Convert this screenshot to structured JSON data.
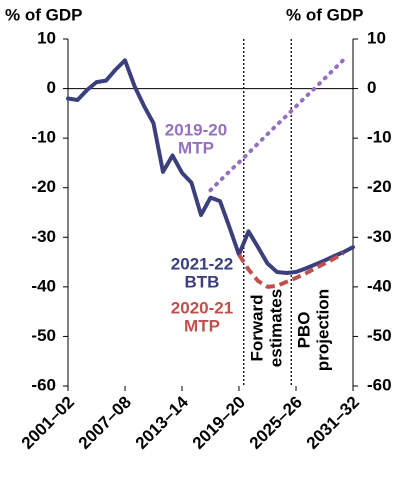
{
  "chart_data": {
    "type": "line",
    "y_label_left": "% of GDP",
    "y_label_right": "% of GDP",
    "x": [
      2001,
      2002,
      2003,
      2004,
      2005,
      2006,
      2007,
      2008,
      2009,
      2010,
      2011,
      2012,
      2013,
      2014,
      2015,
      2016,
      2017,
      2018,
      2019,
      2020,
      2021,
      2022,
      2023,
      2024,
      2025,
      2026,
      2027,
      2028,
      2029,
      2030,
      2031
    ],
    "xlim": [
      2001,
      2031
    ],
    "xticks": [
      {
        "value": 2001,
        "label": "2001–02"
      },
      {
        "value": 2007,
        "label": "2007–08"
      },
      {
        "value": 2013,
        "label": "2013–14"
      },
      {
        "value": 2019,
        "label": "2019–20"
      },
      {
        "value": 2025,
        "label": "2025–26"
      },
      {
        "value": 2031,
        "label": "2031–32"
      }
    ],
    "ylim": [
      -60,
      10
    ],
    "yticks": [
      10,
      0,
      -10,
      -20,
      -30,
      -40,
      -50,
      -60
    ],
    "vlines": [
      2019.5,
      2024.5
    ],
    "series": [
      {
        "name": "2021-22 BTB",
        "color": "#3b3f7c",
        "style": "solid",
        "values": [
          -2,
          -2.3,
          -0.3,
          1.3,
          1.6,
          3.8,
          5.7,
          0.5,
          -3.5,
          -7,
          -16.8,
          -13.5,
          -17,
          -19,
          -25.5,
          -22,
          -22.7,
          -28,
          -33.5,
          -28.8,
          -32,
          -35.3,
          -37,
          -37.2,
          -37,
          -36.3,
          -35.5,
          -34.7,
          -33.8,
          -33,
          -32
        ]
      },
      {
        "name": "2020-21 MTP",
        "color": "#c0504d",
        "style": "dashed",
        "values": [
          null,
          null,
          null,
          null,
          null,
          null,
          null,
          null,
          null,
          null,
          null,
          null,
          null,
          null,
          null,
          null,
          null,
          null,
          -33.5,
          -36.5,
          -38.8,
          -40,
          -39.8,
          -39,
          -38.2,
          -37.3,
          -36.3,
          -35.3,
          -34.3,
          -33.2,
          null
        ]
      },
      {
        "name": "2019-20 MTP",
        "color": "#9370c0",
        "style": "dotted",
        "values": [
          null,
          null,
          null,
          null,
          null,
          null,
          null,
          null,
          null,
          null,
          null,
          null,
          null,
          null,
          null,
          -20.5,
          -18.6,
          -16.7,
          -14.9,
          -13,
          -11.1,
          -9.2,
          -7.3,
          -5.5,
          -3.6,
          -1.7,
          0.1,
          2,
          3.9,
          5.8,
          null
        ]
      }
    ],
    "annotations": [
      {
        "lines": [
          "2019-20",
          "MTP"
        ],
        "color": "#9370c0"
      },
      {
        "lines": [
          "2021-22",
          "BTB"
        ],
        "color": "#3b3f7c"
      },
      {
        "lines": [
          "2020-21",
          "MTP"
        ],
        "color": "#c0504d"
      },
      {
        "lines": [
          "Forward",
          "estimates"
        ],
        "color": "#000000"
      },
      {
        "lines": [
          "PBO",
          "projection"
        ],
        "color": "#000000"
      }
    ]
  }
}
